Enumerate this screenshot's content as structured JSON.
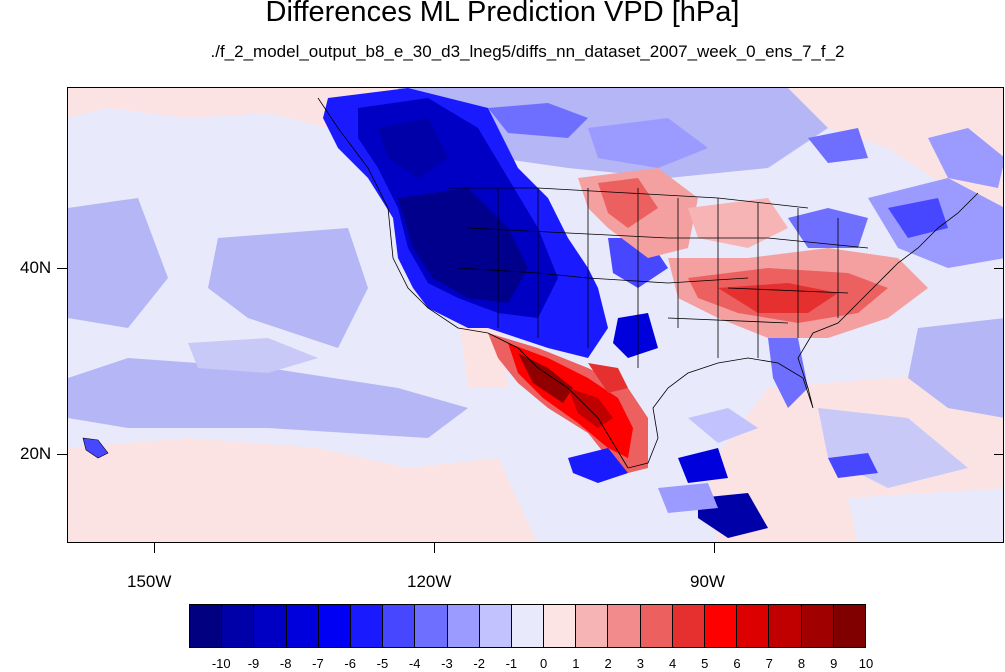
{
  "title": "Differences ML Prediction VPD [hPa]",
  "subtitle": "./f_2_model_output_b8_e_30_d3_lneg5/diffs_nn_dataset_2007_week_0_ens_7_f_2",
  "lat_labels": [
    "40N",
    "20N"
  ],
  "lon_labels": [
    "150W",
    "120W",
    "90W"
  ],
  "colorbar": {
    "labels": [
      "-10",
      "-9",
      "-8",
      "-7",
      "-6",
      "-5",
      "-4",
      "-3",
      "-2",
      "-1",
      "0",
      "1",
      "2",
      "3",
      "4",
      "5",
      "6",
      "7",
      "8",
      "9",
      "10"
    ],
    "colors": [
      "#000080",
      "#0000a8",
      "#0000c4",
      "#0000dd",
      "#0000f5",
      "#1a1aff",
      "#4747ff",
      "#6e6eff",
      "#9a9aff",
      "#c2c2ff",
      "#e8e9fa",
      "#fce4e4",
      "#f7b4b4",
      "#f28c8c",
      "#ec6060",
      "#e63030",
      "#ff0000",
      "#dd0000",
      "#c00000",
      "#a00000",
      "#800000"
    ]
  },
  "colors": {
    "deep_blue": "#00008c",
    "blue": "#1a1aff",
    "light_blue": "#b5b6f5",
    "pale_blue": "#e8e9fa",
    "pale_red": "#fbe3e3",
    "light_red": "#f4a0a0",
    "red": "#ee2020",
    "dark_red": "#900000"
  }
}
